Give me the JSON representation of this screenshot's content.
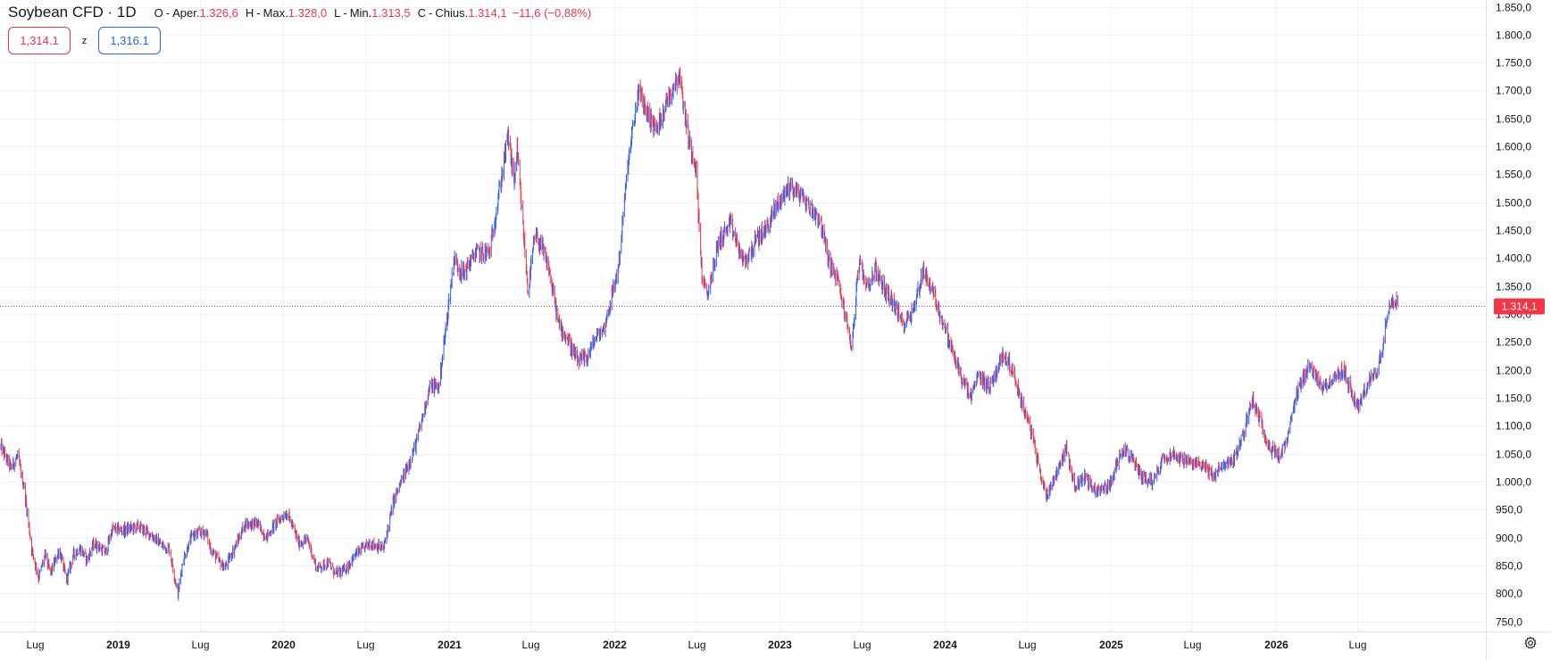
{
  "header": {
    "symbol": "Soybean CFD · 1D",
    "open_label": "O",
    "open_name": "Aper.",
    "open_value": "1.326,6",
    "high_label": "H",
    "high_name": "Max.",
    "high_value": "1.328,0",
    "low_label": "L",
    "low_name": "Min.",
    "low_value": "1.313,5",
    "close_label": "C",
    "close_name": "Chius.",
    "close_value": "1.314,1",
    "change": "−11,6 (−0,88%)",
    "separator": "-"
  },
  "quotes": {
    "sell": "1,314.1",
    "spread": "z",
    "buy": "1,316.1"
  },
  "colors": {
    "up": "#2962ff",
    "down": "#f23645",
    "grid": "#f0f3fa",
    "text": "#131722",
    "price_line": "#f23645"
  },
  "icons": {
    "settings": "gear-icon"
  },
  "chart_data": {
    "type": "candlestick",
    "timeframe": "1D",
    "y_ticks": [
      "750,0",
      "800,0",
      "850,0",
      "900,0",
      "950,0",
      "1.000,0",
      "1.050,0",
      "1.100,0",
      "1.150,0",
      "1.200,0",
      "1.250,0",
      "1.300,0",
      "1.350,0",
      "1.400,0",
      "1.450,0",
      "1.500,0",
      "1.550,0",
      "1.600,0",
      "1.650,0",
      "1.700,0",
      "1.750,0",
      "1.800,0",
      "1.850,0"
    ],
    "ylim": [
      735,
      1862
    ],
    "x_ticks": [
      {
        "label": "Lug",
        "date": "2018-07-01",
        "bold": false
      },
      {
        "label": "2019",
        "date": "2019-01-01",
        "bold": true
      },
      {
        "label": "Lug",
        "date": "2019-07-01",
        "bold": false
      },
      {
        "label": "2020",
        "date": "2020-01-01",
        "bold": true
      },
      {
        "label": "Lug",
        "date": "2020-07-01",
        "bold": false
      },
      {
        "label": "2021",
        "date": "2021-01-01",
        "bold": true
      },
      {
        "label": "Lug",
        "date": "2021-07-01",
        "bold": false
      },
      {
        "label": "2022",
        "date": "2022-01-01",
        "bold": true
      },
      {
        "label": "Lug",
        "date": "2022-07-01",
        "bold": false
      },
      {
        "label": "2023",
        "date": "2023-01-01",
        "bold": true
      },
      {
        "label": "Lug",
        "date": "2023-07-01",
        "bold": false
      },
      {
        "label": "2024",
        "date": "2024-01-01",
        "bold": true
      },
      {
        "label": "Lug",
        "date": "2024-07-01",
        "bold": false
      },
      {
        "label": "2025",
        "date": "2025-01-01",
        "bold": true
      },
      {
        "label": "Lug",
        "date": "2025-07-01",
        "bold": false
      },
      {
        "label": "2026",
        "date": "2026-01-01",
        "bold": true
      },
      {
        "label": "Lug",
        "date": "2026-07-01",
        "bold": false
      }
    ],
    "xlim": [
      "2018-04-16",
      "2027-04-10"
    ],
    "last_price": 1314.1,
    "last_price_label": "1.314,1",
    "series": [
      {
        "price_path": [
          [
            "2018-04-18",
            1062
          ],
          [
            "2018-05-10",
            1025
          ],
          [
            "2018-05-25",
            1045
          ],
          [
            "2018-06-08",
            990
          ],
          [
            "2018-06-25",
            880
          ],
          [
            "2018-07-10",
            828
          ],
          [
            "2018-07-25",
            870
          ],
          [
            "2018-08-05",
            835
          ],
          [
            "2018-08-25",
            878
          ],
          [
            "2018-09-10",
            823
          ],
          [
            "2018-09-25",
            870
          ],
          [
            "2018-10-10",
            880
          ],
          [
            "2018-10-25",
            860
          ],
          [
            "2018-11-10",
            890
          ],
          [
            "2018-12-05",
            873
          ],
          [
            "2018-12-20",
            915
          ],
          [
            "2019-01-15",
            913
          ],
          [
            "2019-02-15",
            920
          ],
          [
            "2019-03-15",
            905
          ],
          [
            "2019-04-10",
            885
          ],
          [
            "2019-04-25",
            880
          ],
          [
            "2019-05-10",
            815
          ],
          [
            "2019-05-14",
            800
          ],
          [
            "2019-05-25",
            860
          ],
          [
            "2019-06-15",
            905
          ],
          [
            "2019-07-15",
            910
          ],
          [
            "2019-07-25",
            880
          ],
          [
            "2019-08-10",
            860
          ],
          [
            "2019-08-25",
            845
          ],
          [
            "2019-09-15",
            880
          ],
          [
            "2019-10-10",
            925
          ],
          [
            "2019-11-05",
            925
          ],
          [
            "2019-11-25",
            900
          ],
          [
            "2019-12-15",
            925
          ],
          [
            "2020-01-10",
            945
          ],
          [
            "2020-02-05",
            890
          ],
          [
            "2020-02-25",
            895
          ],
          [
            "2020-03-15",
            845
          ],
          [
            "2020-04-10",
            855
          ],
          [
            "2020-04-25",
            835
          ],
          [
            "2020-05-15",
            840
          ],
          [
            "2020-06-10",
            870
          ],
          [
            "2020-07-10",
            890
          ],
          [
            "2020-08-10",
            880
          ],
          [
            "2020-09-01",
            965
          ],
          [
            "2020-10-01",
            1025
          ],
          [
            "2020-10-20",
            1065
          ],
          [
            "2020-11-20",
            1170
          ],
          [
            "2020-12-10",
            1170
          ],
          [
            "2021-01-13",
            1400
          ],
          [
            "2021-02-01",
            1370
          ],
          [
            "2021-03-01",
            1410
          ],
          [
            "2021-04-01",
            1410
          ],
          [
            "2021-05-12",
            1620
          ],
          [
            "2021-05-25",
            1540
          ],
          [
            "2021-06-01",
            1590
          ],
          [
            "2021-06-25",
            1340
          ],
          [
            "2021-07-10",
            1440
          ],
          [
            "2021-07-25",
            1420
          ],
          [
            "2021-08-10",
            1380
          ],
          [
            "2021-09-01",
            1280
          ],
          [
            "2021-09-20",
            1255
          ],
          [
            "2021-10-12",
            1215
          ],
          [
            "2021-11-01",
            1220
          ],
          [
            "2021-11-20",
            1255
          ],
          [
            "2021-12-10",
            1275
          ],
          [
            "2022-01-10",
            1380
          ],
          [
            "2022-02-01",
            1570
          ],
          [
            "2022-02-24",
            1700
          ],
          [
            "2022-03-15",
            1660
          ],
          [
            "2022-04-05",
            1630
          ],
          [
            "2022-05-01",
            1690
          ],
          [
            "2022-05-25",
            1730
          ],
          [
            "2022-06-15",
            1610
          ],
          [
            "2022-06-30",
            1570
          ],
          [
            "2022-07-14",
            1370
          ],
          [
            "2022-07-25",
            1330
          ],
          [
            "2022-08-20",
            1430
          ],
          [
            "2022-09-15",
            1460
          ],
          [
            "2022-10-15",
            1390
          ],
          [
            "2022-11-10",
            1430
          ],
          [
            "2022-12-01",
            1450
          ],
          [
            "2022-12-30",
            1500
          ],
          [
            "2023-01-25",
            1530
          ],
          [
            "2023-02-20",
            1510
          ],
          [
            "2023-03-10",
            1490
          ],
          [
            "2023-03-31",
            1470
          ],
          [
            "2023-04-20",
            1395
          ],
          [
            "2023-05-10",
            1360
          ],
          [
            "2023-05-31",
            1280
          ],
          [
            "2023-06-10",
            1240
          ],
          [
            "2023-06-25",
            1390
          ],
          [
            "2023-07-15",
            1350
          ],
          [
            "2023-08-01",
            1380
          ],
          [
            "2023-08-20",
            1345
          ],
          [
            "2023-09-10",
            1320
          ],
          [
            "2023-10-01",
            1280
          ],
          [
            "2023-10-25",
            1310
          ],
          [
            "2023-11-15",
            1380
          ],
          [
            "2023-12-10",
            1330
          ],
          [
            "2024-01-15",
            1240
          ],
          [
            "2024-02-10",
            1180
          ],
          [
            "2024-02-28",
            1150
          ],
          [
            "2024-03-15",
            1190
          ],
          [
            "2024-04-10",
            1170
          ],
          [
            "2024-05-10",
            1230
          ],
          [
            "2024-05-30",
            1200
          ],
          [
            "2024-06-20",
            1140
          ],
          [
            "2024-07-10",
            1090
          ],
          [
            "2024-08-01",
            1010
          ],
          [
            "2024-08-12",
            975
          ],
          [
            "2024-09-01",
            1010
          ],
          [
            "2024-09-25",
            1060
          ],
          [
            "2024-10-15",
            990
          ],
          [
            "2024-11-05",
            1010
          ],
          [
            "2024-11-25",
            985
          ],
          [
            "2024-12-15",
            985
          ],
          [
            "2025-01-05",
            1000
          ],
          [
            "2025-01-25",
            1060
          ],
          [
            "2025-02-10",
            1050
          ],
          [
            "2025-03-10",
            1010
          ],
          [
            "2025-04-05",
            1000
          ],
          [
            "2025-04-25",
            1040
          ],
          [
            "2025-05-15",
            1050
          ],
          [
            "2025-06-10",
            1040
          ],
          [
            "2025-07-01",
            1030
          ],
          [
            "2025-07-20",
            1035
          ],
          [
            "2025-08-15",
            1010
          ],
          [
            "2025-09-10",
            1030
          ],
          [
            "2025-10-01",
            1040
          ],
          [
            "2025-10-20",
            1080
          ],
          [
            "2025-11-10",
            1150
          ],
          [
            "2025-12-01",
            1100
          ],
          [
            "2025-12-20",
            1060
          ],
          [
            "2026-01-10",
            1045
          ],
          [
            "2026-01-25",
            1070
          ],
          [
            "2026-02-15",
            1150
          ],
          [
            "2026-03-15",
            1210
          ],
          [
            "2026-04-10",
            1170
          ],
          [
            "2026-05-05",
            1180
          ],
          [
            "2026-06-01",
            1200
          ],
          [
            "2026-06-20",
            1150
          ],
          [
            "2026-07-05",
            1135
          ],
          [
            "2026-07-25",
            1180
          ],
          [
            "2026-08-10",
            1190
          ],
          [
            "2026-08-25",
            1240
          ],
          [
            "2026-09-05",
            1310
          ],
          [
            "2026-09-18",
            1330
          ],
          [
            "2026-09-28",
            1315
          ]
        ]
      }
    ]
  }
}
